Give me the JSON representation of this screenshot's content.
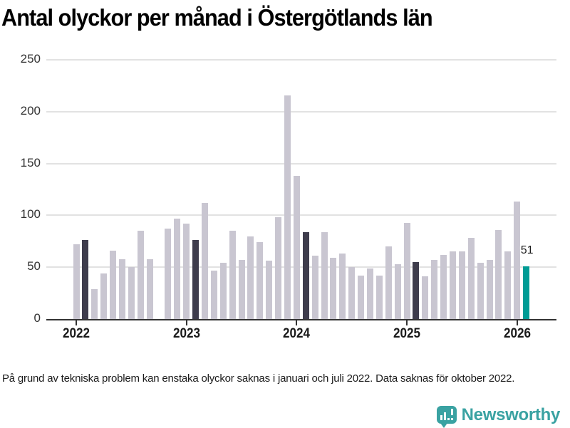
{
  "title": "Antal olyckor per månad i Östergötlands län",
  "footnote": "På grund av tekniska problem kan enstaka olyckor saknas i januari och juli 2022. Data saknas för oktober 2022.",
  "logo": {
    "text": "Newsworthy",
    "icon": "speech-bubble-with-bar-chart-and-exclamation"
  },
  "colors": {
    "bar_default": "#c9c6d1",
    "bar_dark": "#3e3c4c",
    "bar_highlight": "#009c95",
    "gridline": "#e2e2e2",
    "axis": "#333333",
    "text": "#1a1a1a",
    "logo_teal": "#3aa2a2"
  },
  "chart_data": {
    "type": "bar",
    "title": "Antal olyckor per månad i Östergötlands län",
    "xlabel": "",
    "ylabel": "",
    "ylim": [
      0,
      250
    ],
    "yticks": [
      0,
      50,
      100,
      150,
      200,
      250
    ],
    "grid": "horizontal",
    "legend": "none",
    "x": [
      "2022-01",
      "2022-02",
      "2022-03",
      "2022-04",
      "2022-05",
      "2022-06",
      "2022-07",
      "2022-08",
      "2022-09",
      "2022-10",
      "2022-11",
      "2022-12",
      "2023-01",
      "2023-02",
      "2023-03",
      "2023-04",
      "2023-05",
      "2023-06",
      "2023-07",
      "2023-08",
      "2023-09",
      "2023-10",
      "2023-11",
      "2023-12",
      "2024-01",
      "2024-02",
      "2024-03",
      "2024-04",
      "2024-05",
      "2024-06",
      "2024-07",
      "2024-08",
      "2024-09",
      "2024-10",
      "2024-11",
      "2024-12",
      "2025-01",
      "2025-02",
      "2025-03",
      "2025-04",
      "2025-05",
      "2025-06",
      "2025-07",
      "2025-08",
      "2025-09",
      "2025-10",
      "2025-11",
      "2025-12",
      "2026-01",
      "2026-02"
    ],
    "values": [
      72,
      76,
      29,
      44,
      66,
      58,
      50,
      85,
      58,
      null,
      87,
      97,
      92,
      76,
      112,
      47,
      54,
      85,
      57,
      80,
      74,
      56,
      98,
      216,
      138,
      84,
      61,
      84,
      59,
      63,
      50,
      42,
      49,
      42,
      70,
      53,
      93,
      55,
      41,
      57,
      62,
      65,
      65,
      78,
      54,
      57,
      86,
      65,
      113,
      51
    ],
    "missing_months": [
      "2022-10"
    ],
    "highlight_dark_months": [
      "2022-02",
      "2023-02",
      "2024-02",
      "2025-02"
    ],
    "highlight_teal_months": [
      "2026-02"
    ],
    "annotation": {
      "month": "2026-02",
      "text": "51"
    },
    "xticks": [
      {
        "label": "2022",
        "month": "2022-01"
      },
      {
        "label": "2023",
        "month": "2023-01"
      },
      {
        "label": "2024",
        "month": "2024-01"
      },
      {
        "label": "2025",
        "month": "2025-01"
      },
      {
        "label": "2026",
        "month": "2026-01"
      }
    ]
  }
}
